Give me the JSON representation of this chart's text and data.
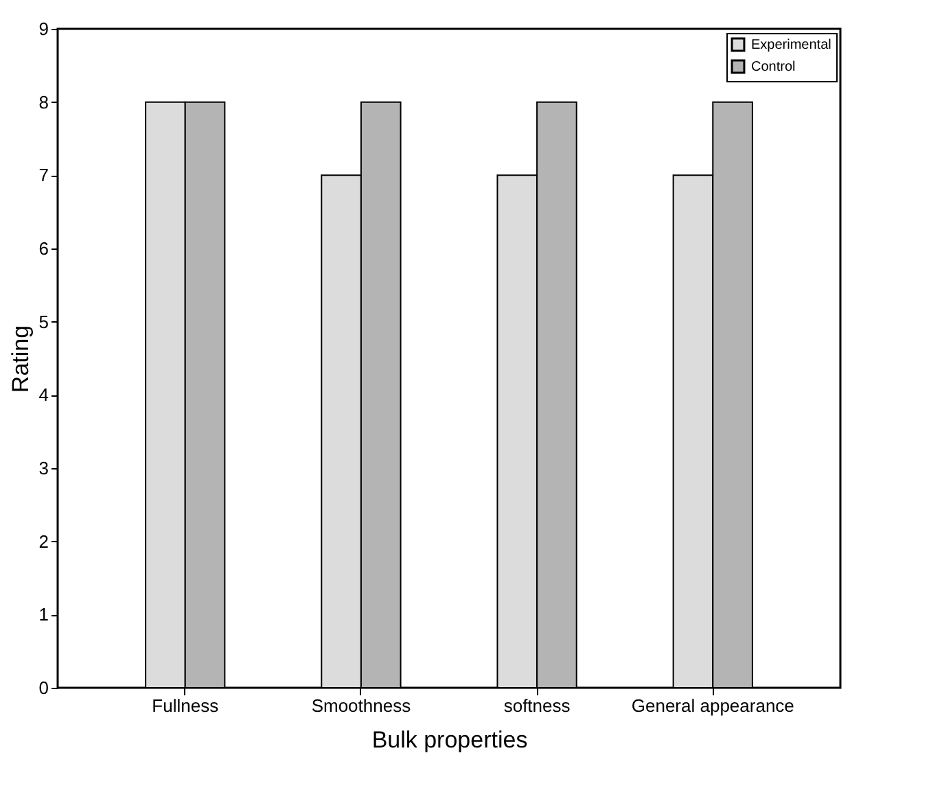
{
  "chart_data": {
    "type": "bar",
    "xlabel": "Bulk properties",
    "ylabel": "Rating",
    "categories": [
      "Fullness",
      "Smoothness",
      "softness",
      "General appearance"
    ],
    "series": [
      {
        "name": "Experimental",
        "color": "#dcdcdc",
        "values": [
          8,
          7,
          7,
          7
        ]
      },
      {
        "name": "Control",
        "color": "#b4b4b4",
        "values": [
          8,
          8,
          8,
          8
        ]
      }
    ],
    "ylim": [
      0,
      9
    ],
    "yticks": [
      0,
      1,
      2,
      3,
      4,
      5,
      6,
      7,
      8,
      9
    ],
    "grid": false,
    "legend": "top right"
  }
}
